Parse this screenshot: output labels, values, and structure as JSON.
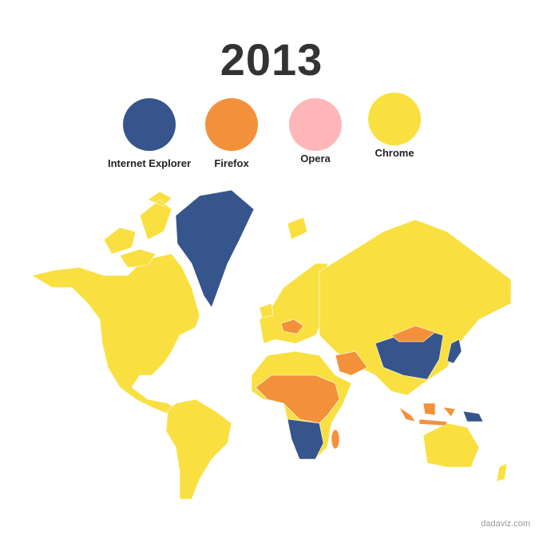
{
  "title": "2013",
  "legend": [
    {
      "label": "Internet Explorer",
      "color": "#36558c"
    },
    {
      "label": "Firefox",
      "color": "#f3913b"
    },
    {
      "label": "Opera",
      "color": "#ffb6b8"
    },
    {
      "label": "Chrome",
      "color": "#f9e040"
    }
  ],
  "map": {
    "default_browser": "Chrome",
    "regions": [
      {
        "region": "Greenland",
        "browser": "Internet Explorer"
      },
      {
        "region": "China",
        "browser": "Internet Explorer"
      },
      {
        "region": "Japan",
        "browser": "Internet Explorer"
      },
      {
        "region": "Southern Africa",
        "browser": "Internet Explorer"
      },
      {
        "region": "Papua New Guinea",
        "browser": "Internet Explorer"
      },
      {
        "region": "Mongolia",
        "browser": "Firefox"
      },
      {
        "region": "Iran",
        "browser": "Firefox"
      },
      {
        "region": "Central Africa",
        "browser": "Firefox"
      },
      {
        "region": "Madagascar",
        "browser": "Firefox"
      },
      {
        "region": "Indonesia",
        "browser": "Firefox"
      },
      {
        "region": "Central Europe",
        "browser": "Firefox"
      }
    ]
  },
  "watermark": "dadaviz.com"
}
